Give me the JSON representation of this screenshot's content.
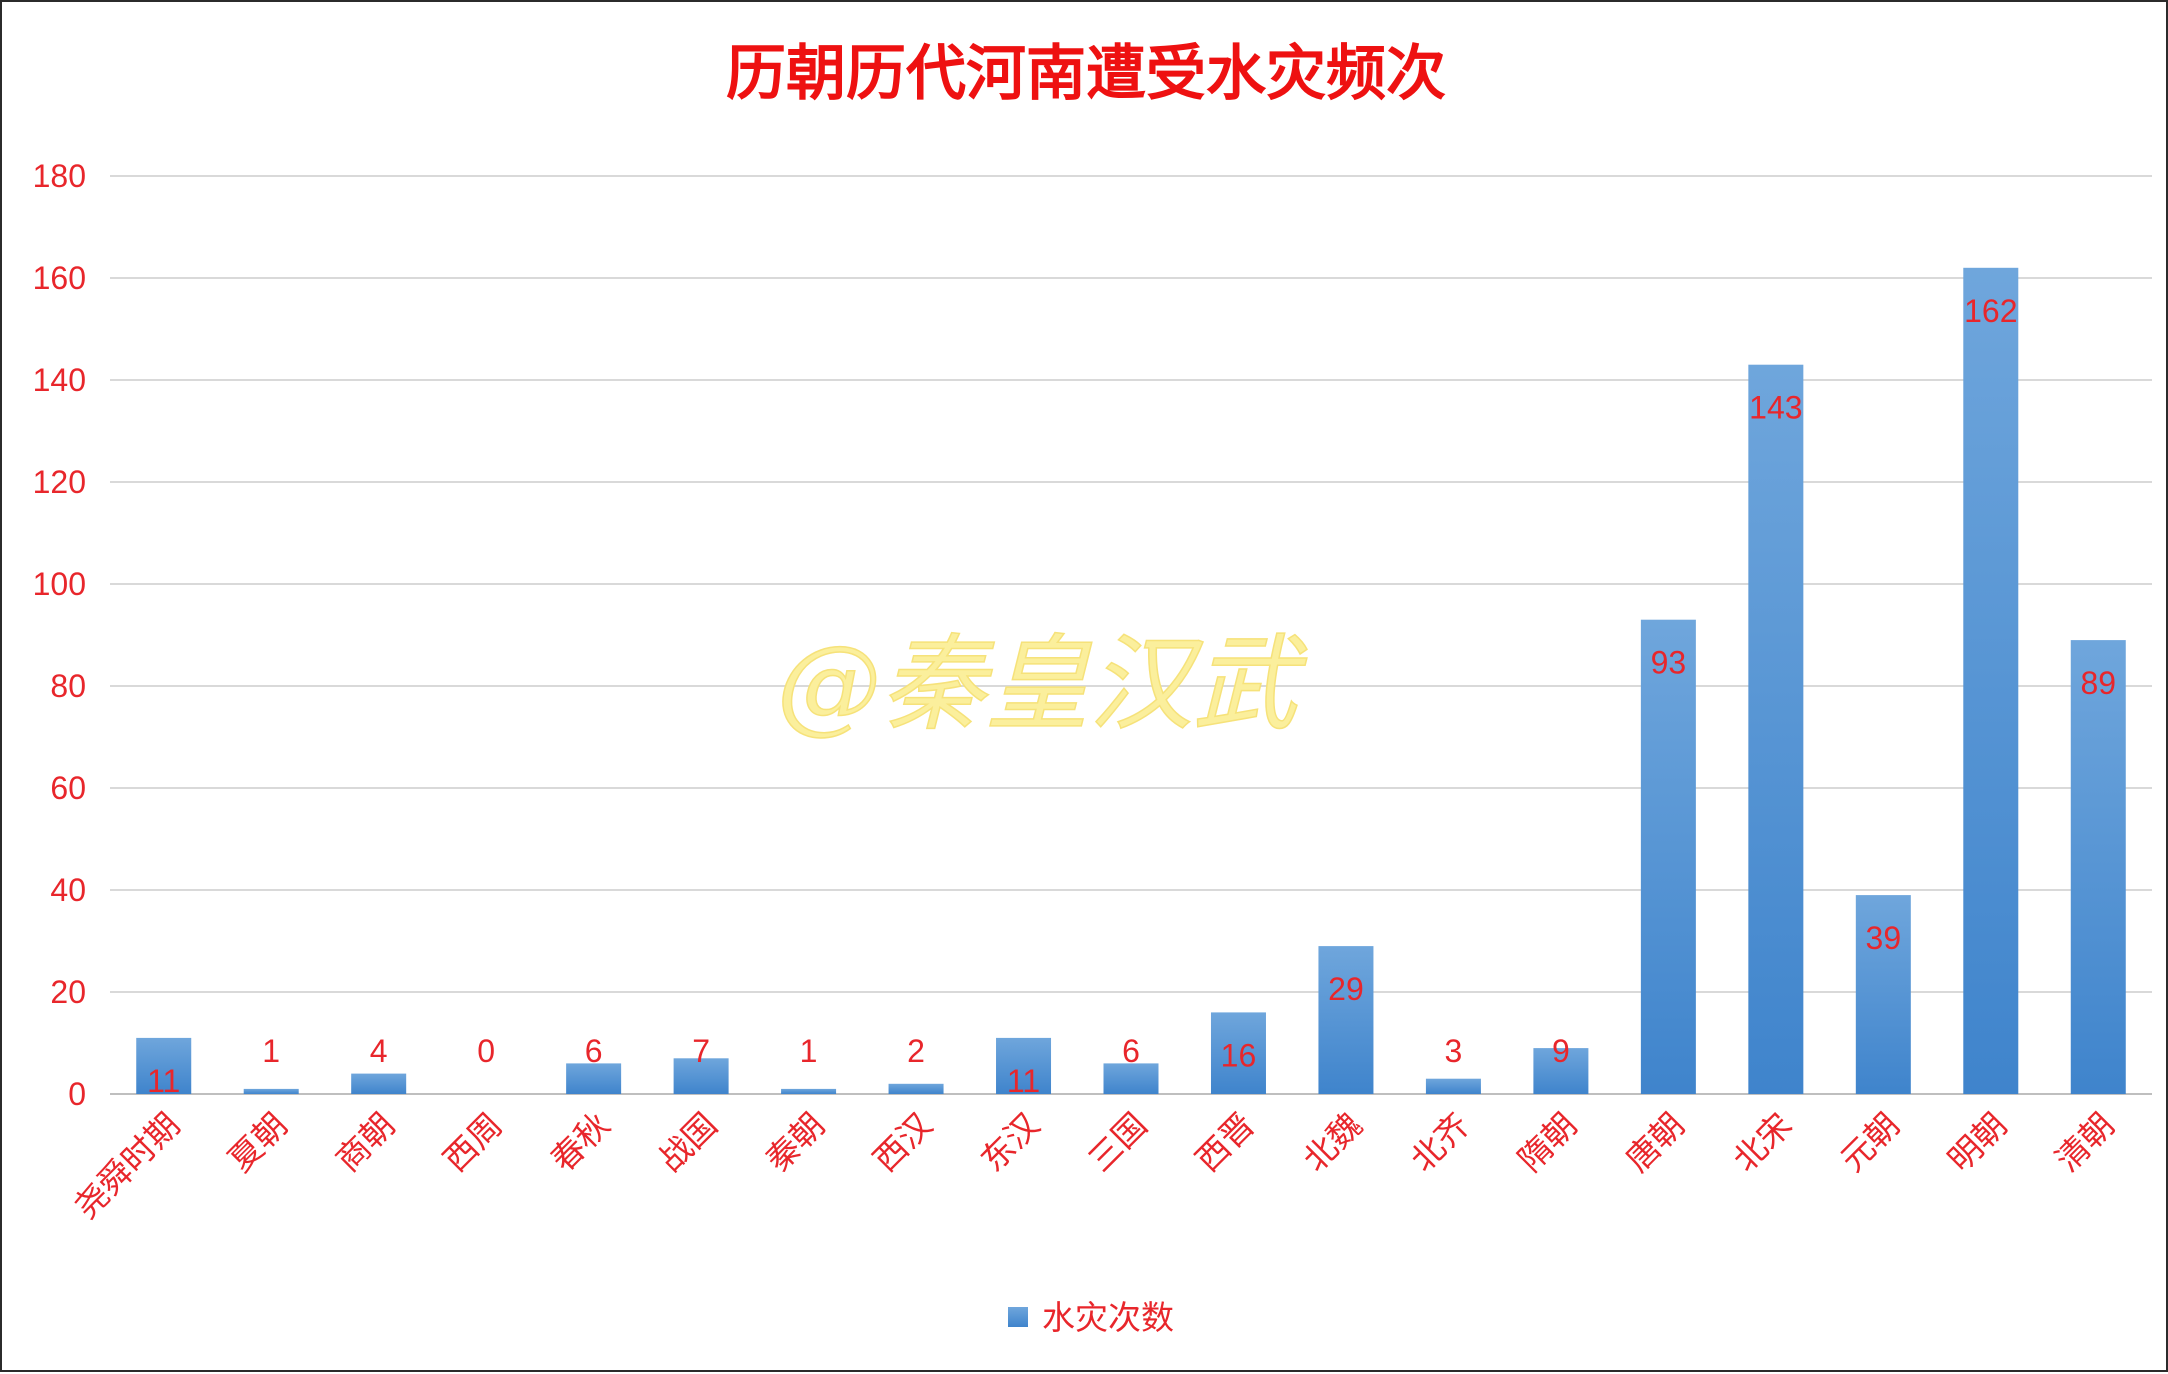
{
  "chart_data": {
    "type": "bar",
    "title": "历朝历代河南遭受水灾频次",
    "categories": [
      "尧舜时期",
      "夏朝",
      "商朝",
      "西周",
      "春秋",
      "战国",
      "秦朝",
      "西汉",
      "东汉",
      "三国",
      "西晋",
      "北魏",
      "北齐",
      "隋朝",
      "唐朝",
      "北宋",
      "元朝",
      "明朝",
      "清朝"
    ],
    "series": [
      {
        "name": "水灾次数",
        "values": [
          11,
          1,
          4,
          0,
          6,
          7,
          1,
          2,
          11,
          6,
          16,
          29,
          3,
          9,
          93,
          143,
          39,
          162,
          89
        ]
      }
    ],
    "ylim": [
      0,
      180
    ],
    "yticks": [
      0,
      20,
      40,
      60,
      80,
      100,
      120,
      140,
      160,
      180
    ],
    "grid": true,
    "legend_position": "bottom",
    "watermark": "@秦皇汉武",
    "colors": {
      "bar_top": "#6fa6dc",
      "bar_bottom": "#3f84cc",
      "text": "#e8262b",
      "title": "#ee1111",
      "watermark": "#fbef9c"
    }
  }
}
